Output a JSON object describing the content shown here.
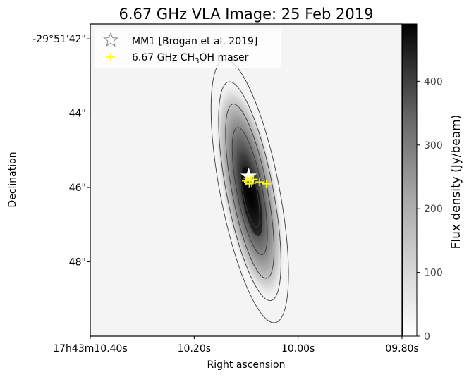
{
  "chart_data": {
    "type": "heatmap",
    "title": "6.67 GHz VLA Image: 25 Feb 2019",
    "xlabel": "Right ascension",
    "ylabel": "Declination",
    "x_unit": "seconds of RA (17h43m)",
    "y_unit": "arcsec (-29°51')",
    "xlim": [
      10.4,
      9.8
    ],
    "ylim": [
      50,
      41.6
    ],
    "x_ticks": [
      {
        "value": 10.4,
        "label": "17h43m10.40s"
      },
      {
        "value": 10.2,
        "label": "10.20s"
      },
      {
        "value": 10.0,
        "label": "10.00s"
      },
      {
        "value": 9.8,
        "label": "09.80s"
      }
    ],
    "y_ticks": [
      {
        "value": 42,
        "label": "-29°51'42\""
      },
      {
        "value": 44,
        "label": "44\""
      },
      {
        "value": 46,
        "label": "46\""
      },
      {
        "value": 48,
        "label": "48\""
      }
    ],
    "colorbar": {
      "label": "Flux density (Jy/beam)",
      "range": [
        0,
        490
      ],
      "ticks": [
        0,
        100,
        200,
        300,
        400
      ],
      "colormap": "gray_r"
    },
    "emission": {
      "peak": 480,
      "center_x": 10.093,
      "center_y": 46.1,
      "contour_levels": [
        20,
        60,
        140,
        260,
        380
      ]
    },
    "series": [
      {
        "name": "MM1 [Brogan et al. 2019]",
        "marker": "star",
        "color": "#ffffff",
        "points": [
          {
            "x": 10.095,
            "y": 45.7
          }
        ]
      },
      {
        "name": "6.67 GHz CH$_3$OH maser",
        "marker": "plus",
        "color": "#ffff00",
        "points": [
          {
            "x": 10.097,
            "y": 45.75
          },
          {
            "x": 10.092,
            "y": 45.8
          },
          {
            "x": 10.1,
            "y": 45.82
          },
          {
            "x": 10.089,
            "y": 45.88
          },
          {
            "x": 10.094,
            "y": 45.9
          },
          {
            "x": 10.086,
            "y": 45.78
          },
          {
            "x": 10.074,
            "y": 45.85
          },
          {
            "x": 10.061,
            "y": 45.9
          }
        ]
      }
    ],
    "legend": {
      "placement": "top-left",
      "entries": [
        {
          "text": "MM1 [Brogan et al. 2019]",
          "marker": "star"
        },
        {
          "text": "6.67 GHz CH",
          "sub": "3",
          "tail": "OH maser",
          "marker": "plus"
        }
      ]
    },
    "grid": false
  }
}
